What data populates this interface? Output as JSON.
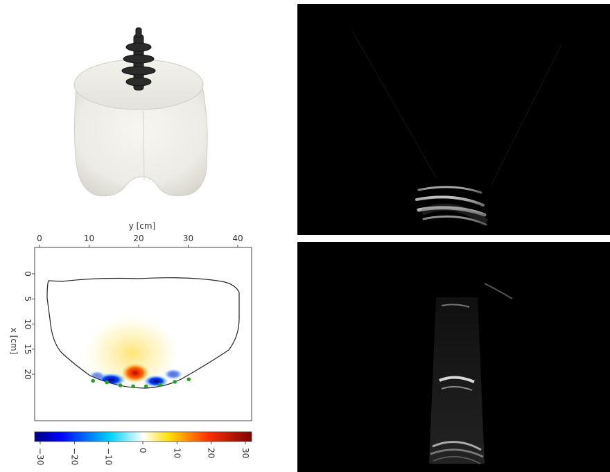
{
  "photo": {
    "name": "phantom-photo"
  },
  "plot": {
    "top_axis_label": "y [cm]",
    "left_axis_label": "x [cm]",
    "y_ticks": [
      "0",
      "10",
      "20",
      "30",
      "40"
    ],
    "x_ticks": [
      "0",
      "5",
      "10",
      "15",
      "20"
    ],
    "colorbar_ticks": [
      "−30",
      "−20",
      "−10",
      "0",
      "10",
      "20",
      "30"
    ],
    "colormap": "jet",
    "sensor_color": "#2a9d2a",
    "sensor_points": [
      {
        "x": 21.3,
        "y": 10.8
      },
      {
        "x": 21.6,
        "y": 13.6
      },
      {
        "x": 22.2,
        "y": 16.3
      },
      {
        "x": 22.4,
        "y": 18.9
      },
      {
        "x": 22.4,
        "y": 21.5
      },
      {
        "x": 22.1,
        "y": 24.3
      },
      {
        "x": 21.5,
        "y": 27.3
      },
      {
        "x": 21.0,
        "y": 30.1
      }
    ]
  },
  "ultrasound": {
    "top": {
      "name": "ultrasound-image-top"
    },
    "bottom": {
      "name": "ultrasound-image-bottom"
    }
  }
}
